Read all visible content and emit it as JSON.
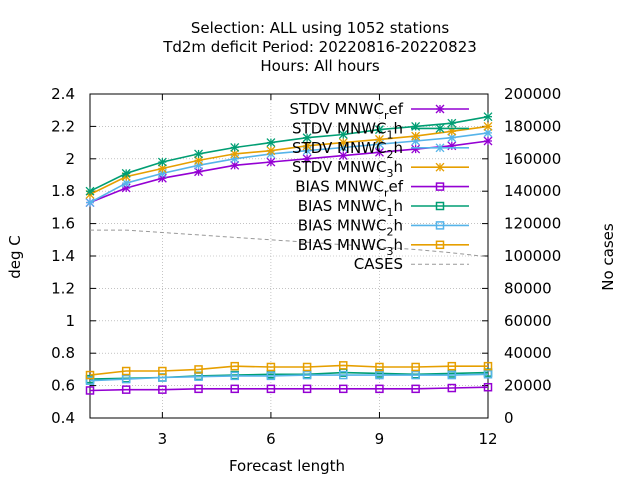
{
  "chart_data": {
    "type": "line",
    "title": [
      "Selection: ALL using  1052 stations",
      "Td2m deficit   Period: 20220816-20220823",
      "Hours:  All hours"
    ],
    "xlabel": "Forecast length",
    "ylabel": "deg C",
    "y2label": "No cases",
    "xlim": [
      1,
      12
    ],
    "ylim": [
      0.4,
      2.4
    ],
    "y2lim": [
      0,
      200000
    ],
    "xticks": [
      3,
      6,
      9,
      12
    ],
    "yticks": [
      0.4,
      0.6,
      0.8,
      1,
      1.2,
      1.4,
      1.6,
      1.8,
      2,
      2.2,
      2.4
    ],
    "y2ticks": [
      0,
      20000,
      40000,
      60000,
      80000,
      100000,
      120000,
      140000,
      160000,
      180000,
      200000
    ],
    "grid": true,
    "legend_position": "top-right",
    "x": [
      1,
      2,
      3,
      4,
      5,
      6,
      7,
      8,
      9,
      10,
      11,
      12
    ],
    "series": [
      {
        "name": "STDV MNWC_ref",
        "base": "STDV MNWC",
        "sub": "r",
        "tail": "ef",
        "color": "#9400d3",
        "marker": "star",
        "dash": false,
        "axis": "y",
        "values": [
          1.73,
          1.82,
          1.88,
          1.92,
          1.96,
          1.98,
          2.0,
          2.02,
          2.04,
          2.06,
          2.08,
          2.11
        ]
      },
      {
        "name": "STDV MNWC_1h",
        "base": "STDV MNWC",
        "sub": "1",
        "tail": "h",
        "color": "#009e73",
        "marker": "star",
        "dash": false,
        "axis": "y",
        "values": [
          1.8,
          1.91,
          1.98,
          2.03,
          2.07,
          2.1,
          2.13,
          2.15,
          2.18,
          2.2,
          2.22,
          2.26
        ]
      },
      {
        "name": "STDV MNWC_2h",
        "base": "STDV MNWC",
        "sub": "2",
        "tail": "h",
        "color": "#56b4e9",
        "marker": "star",
        "dash": false,
        "axis": "y",
        "values": [
          1.73,
          1.85,
          1.91,
          1.96,
          2.0,
          2.03,
          2.05,
          2.07,
          2.09,
          2.11,
          2.13,
          2.16
        ]
      },
      {
        "name": "STDV MNWC_3h",
        "base": "STDV MNWC",
        "sub": "3",
        "tail": "h",
        "color": "#e69f00",
        "marker": "star",
        "dash": false,
        "axis": "y",
        "values": [
          1.78,
          1.89,
          1.94,
          1.99,
          2.03,
          2.05,
          2.08,
          2.1,
          2.12,
          2.14,
          2.17,
          2.2
        ]
      },
      {
        "name": "BIAS MNWC_ref",
        "base": "BIAS MNWC",
        "sub": "r",
        "tail": "ef",
        "color": "#9400d3",
        "marker": "square",
        "dash": false,
        "axis": "y",
        "values": [
          0.57,
          0.575,
          0.575,
          0.58,
          0.58,
          0.58,
          0.58,
          0.58,
          0.58,
          0.58,
          0.585,
          0.59
        ]
      },
      {
        "name": "BIAS MNWC_1h",
        "base": "BIAS MNWC",
        "sub": "1",
        "tail": "h",
        "color": "#009e73",
        "marker": "square",
        "dash": false,
        "axis": "y",
        "values": [
          0.64,
          0.645,
          0.65,
          0.66,
          0.665,
          0.67,
          0.67,
          0.68,
          0.675,
          0.67,
          0.675,
          0.68
        ]
      },
      {
        "name": "BIAS MNWC_2h",
        "base": "BIAS MNWC",
        "sub": "2",
        "tail": "h",
        "color": "#56b4e9",
        "marker": "square",
        "dash": false,
        "axis": "y",
        "values": [
          0.63,
          0.64,
          0.65,
          0.655,
          0.66,
          0.66,
          0.665,
          0.665,
          0.665,
          0.665,
          0.665,
          0.67
        ]
      },
      {
        "name": "BIAS MNWC_3h",
        "base": "BIAS MNWC",
        "sub": "3",
        "tail": "h",
        "color": "#e69f00",
        "marker": "square",
        "dash": false,
        "axis": "y",
        "values": [
          0.665,
          0.69,
          0.69,
          0.7,
          0.72,
          0.715,
          0.715,
          0.725,
          0.715,
          0.715,
          0.72,
          0.72
        ]
      },
      {
        "name": "CASES",
        "base": "CASES",
        "sub": "",
        "tail": "",
        "color": "#999999",
        "marker": "none",
        "dash": true,
        "axis": "y2",
        "values": [
          116000,
          116000,
          114500,
          113000,
          111500,
          110000,
          108500,
          107000,
          105500,
          104000,
          102000,
          99500
        ]
      }
    ]
  }
}
